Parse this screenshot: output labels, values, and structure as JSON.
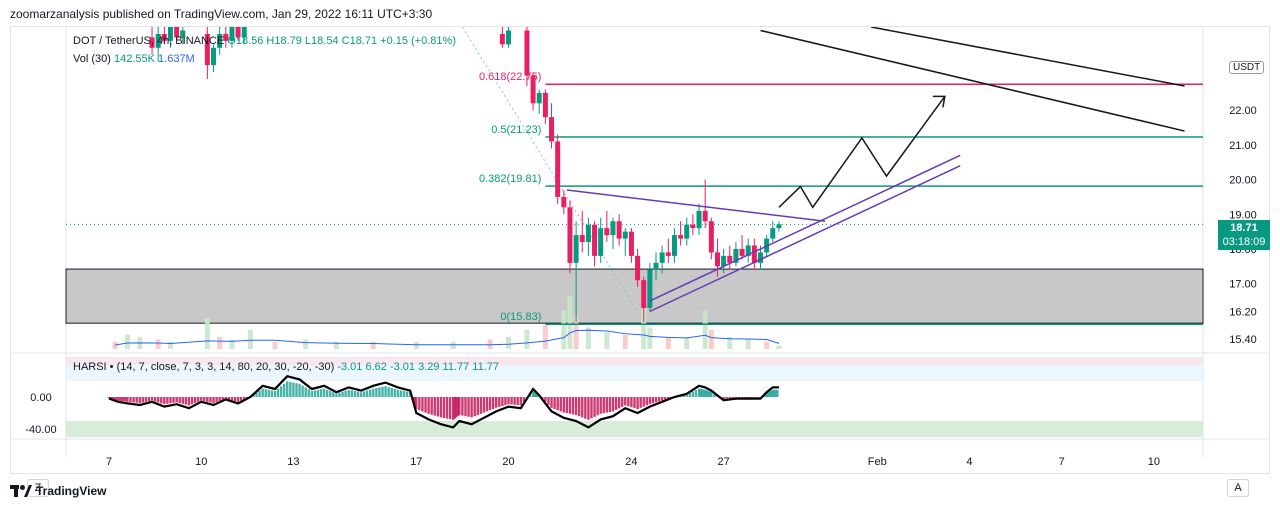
{
  "publisher": "zoomarzanalysis published on TradingView.com, Jan 29, 2022 16:11 UTC+3:30",
  "footer": {
    "brand": "TradingView",
    "logo_icon": "tradingview-logo-icon"
  },
  "corner_buttons": {
    "left": "Z",
    "right": "A"
  },
  "legend": {
    "symbol": "DOT / TetherUS, 4h, BINANCE",
    "ohlc": "O18.56  H18.79  L18.54  C18.71  +0.15 (+0.81%)",
    "vol_label": "Vol (30)",
    "vol_value": "142.55K",
    "vol_ma": "1.637M",
    "harsi_label": "HARSI • (14, 7, close, 7, 3, 3, 14, 80, 20, 30, -20, -30)",
    "harsi_values": "-3.01  6.62  -3.01  3.29  11.77  11.77"
  },
  "price_axis": {
    "unit": "USDT",
    "current_price": "18.71",
    "countdown": "03:18:09"
  },
  "chart_data": {
    "type": "candlestick",
    "x_tick_labels": [
      {
        "label": "7",
        "day": 7
      },
      {
        "label": "10",
        "day": 10
      },
      {
        "label": "13",
        "day": 13
      },
      {
        "label": "17",
        "day": 17
      },
      {
        "label": "20",
        "day": 20
      },
      {
        "label": "24",
        "day": 24
      },
      {
        "label": "27",
        "day": 27
      },
      {
        "label": "Feb",
        "day": 32
      },
      {
        "label": "4",
        "day": 35
      },
      {
        "label": "7",
        "day": 38
      },
      {
        "label": "10",
        "day": 41
      }
    ],
    "y_tick_labels": [
      "22.00",
      "21.00",
      "20.00",
      "19.00",
      "18.00",
      "17.00",
      "16.20",
      "15.40"
    ],
    "ylim": [
      15.0,
      24.4
    ],
    "fib_levels": [
      {
        "label": "0.618(22.75)",
        "price": 22.75,
        "color": "#e91e63"
      },
      {
        "label": "0.5(21.23)",
        "price": 21.23,
        "color": "#089981"
      },
      {
        "label": "0.382(19.81)",
        "price": 19.81,
        "color": "#089981"
      },
      {
        "label": "0(15.83)",
        "price": 15.83,
        "color": "#089981"
      }
    ],
    "support_zone": {
      "low": 15.86,
      "high": 17.42,
      "color": "#c8c8c8"
    },
    "current_price": 18.71,
    "candles": [
      {
        "d": 8.4,
        "o": 24.1,
        "h": 24.6,
        "l": 23.6,
        "c": 23.8
      },
      {
        "d": 8.6,
        "o": 23.8,
        "h": 24.4,
        "l": 23.4,
        "c": 24.2
      },
      {
        "d": 8.8,
        "o": 24.2,
        "h": 24.6,
        "l": 23.9,
        "c": 24.0
      },
      {
        "d": 9.0,
        "o": 24.0,
        "h": 24.6,
        "l": 23.8,
        "c": 24.4
      },
      {
        "d": 9.2,
        "o": 24.4,
        "h": 24.6,
        "l": 24.0,
        "c": 24.1
      },
      {
        "d": 9.4,
        "o": 24.1,
        "h": 24.6,
        "l": 23.9,
        "c": 24.3
      },
      {
        "d": 10.2,
        "o": 24.2,
        "h": 24.5,
        "l": 22.9,
        "c": 23.3
      },
      {
        "d": 10.4,
        "o": 23.3,
        "h": 23.9,
        "l": 23.1,
        "c": 23.8
      },
      {
        "d": 10.6,
        "o": 23.8,
        "h": 24.4,
        "l": 23.6,
        "c": 24.2
      },
      {
        "d": 10.8,
        "o": 24.2,
        "h": 24.6,
        "l": 23.8,
        "c": 24.0
      },
      {
        "d": 11.0,
        "o": 24.0,
        "h": 24.6,
        "l": 23.8,
        "c": 24.4
      },
      {
        "d": 11.2,
        "o": 24.4,
        "h": 24.6,
        "l": 24.0,
        "c": 24.1
      },
      {
        "d": 11.4,
        "o": 24.1,
        "h": 24.6,
        "l": 23.9,
        "c": 24.5
      },
      {
        "d": 19.8,
        "o": 24.2,
        "h": 24.6,
        "l": 23.8,
        "c": 23.9
      },
      {
        "d": 20.0,
        "o": 23.9,
        "h": 24.5,
        "l": 23.8,
        "c": 24.3
      },
      {
        "d": 20.6,
        "o": 24.3,
        "h": 24.5,
        "l": 22.7,
        "c": 23.0
      },
      {
        "d": 20.8,
        "o": 23.0,
        "h": 23.1,
        "l": 22.0,
        "c": 22.2
      },
      {
        "d": 21.0,
        "o": 22.2,
        "h": 22.6,
        "l": 21.9,
        "c": 22.5
      },
      {
        "d": 21.2,
        "o": 22.5,
        "h": 22.6,
        "l": 21.6,
        "c": 21.8
      },
      {
        "d": 21.4,
        "o": 21.8,
        "h": 22.2,
        "l": 20.9,
        "c": 21.1
      },
      {
        "d": 21.6,
        "o": 21.1,
        "h": 21.3,
        "l": 19.3,
        "c": 19.5
      },
      {
        "d": 21.8,
        "o": 19.5,
        "h": 19.7,
        "l": 19.0,
        "c": 19.2
      },
      {
        "d": 22.0,
        "o": 19.2,
        "h": 19.4,
        "l": 17.3,
        "c": 17.6
      },
      {
        "d": 22.2,
        "o": 17.6,
        "h": 18.8,
        "l": 15.9,
        "c": 18.4
      },
      {
        "d": 22.4,
        "o": 18.4,
        "h": 19.1,
        "l": 17.9,
        "c": 18.2
      },
      {
        "d": 22.6,
        "o": 18.2,
        "h": 18.9,
        "l": 17.8,
        "c": 18.7
      },
      {
        "d": 22.8,
        "o": 18.7,
        "h": 18.8,
        "l": 17.5,
        "c": 17.8
      },
      {
        "d": 23.0,
        "o": 17.8,
        "h": 18.9,
        "l": 17.6,
        "c": 18.6
      },
      {
        "d": 23.2,
        "o": 18.6,
        "h": 19.1,
        "l": 18.2,
        "c": 18.4
      },
      {
        "d": 23.4,
        "o": 18.4,
        "h": 18.9,
        "l": 18.0,
        "c": 18.8
      },
      {
        "d": 23.6,
        "o": 18.8,
        "h": 19.0,
        "l": 18.1,
        "c": 18.3
      },
      {
        "d": 23.8,
        "o": 18.3,
        "h": 18.6,
        "l": 17.8,
        "c": 18.5
      },
      {
        "d": 24.0,
        "o": 18.5,
        "h": 18.6,
        "l": 17.6,
        "c": 17.8
      },
      {
        "d": 24.2,
        "o": 17.8,
        "h": 18.0,
        "l": 16.9,
        "c": 17.1
      },
      {
        "d": 24.4,
        "o": 17.1,
        "h": 17.2,
        "l": 15.9,
        "c": 16.3
      },
      {
        "d": 24.6,
        "o": 16.3,
        "h": 17.6,
        "l": 16.2,
        "c": 17.4
      },
      {
        "d": 24.8,
        "o": 17.4,
        "h": 17.9,
        "l": 17.1,
        "c": 17.6
      },
      {
        "d": 25.0,
        "o": 17.6,
        "h": 18.1,
        "l": 17.3,
        "c": 17.9
      },
      {
        "d": 25.2,
        "o": 17.9,
        "h": 18.3,
        "l": 17.6,
        "c": 17.8
      },
      {
        "d": 25.4,
        "o": 17.8,
        "h": 18.6,
        "l": 17.6,
        "c": 18.4
      },
      {
        "d": 25.6,
        "o": 18.4,
        "h": 18.8,
        "l": 18.1,
        "c": 18.3
      },
      {
        "d": 25.8,
        "o": 18.3,
        "h": 18.9,
        "l": 18.1,
        "c": 18.7
      },
      {
        "d": 26.0,
        "o": 18.7,
        "h": 19.0,
        "l": 18.4,
        "c": 18.6
      },
      {
        "d": 26.2,
        "o": 18.6,
        "h": 19.3,
        "l": 18.4,
        "c": 19.1
      },
      {
        "d": 26.4,
        "o": 19.1,
        "h": 20.0,
        "l": 18.6,
        "c": 18.8
      },
      {
        "d": 26.6,
        "o": 18.8,
        "h": 18.9,
        "l": 17.7,
        "c": 17.9
      },
      {
        "d": 26.8,
        "o": 17.9,
        "h": 18.3,
        "l": 17.2,
        "c": 17.5
      },
      {
        "d": 27.0,
        "o": 17.5,
        "h": 18.0,
        "l": 17.3,
        "c": 17.8
      },
      {
        "d": 27.2,
        "o": 17.8,
        "h": 18.1,
        "l": 17.4,
        "c": 17.6
      },
      {
        "d": 27.4,
        "o": 17.6,
        "h": 18.2,
        "l": 17.5,
        "c": 18.0
      },
      {
        "d": 27.6,
        "o": 18.0,
        "h": 18.4,
        "l": 17.7,
        "c": 17.8
      },
      {
        "d": 27.8,
        "o": 17.8,
        "h": 18.3,
        "l": 17.6,
        "c": 18.1
      },
      {
        "d": 28.0,
        "o": 18.1,
        "h": 18.3,
        "l": 17.4,
        "c": 17.6
      },
      {
        "d": 28.2,
        "o": 17.6,
        "h": 18.1,
        "l": 17.4,
        "c": 17.9
      },
      {
        "d": 28.4,
        "o": 17.9,
        "h": 18.4,
        "l": 17.8,
        "c": 18.3
      },
      {
        "d": 28.6,
        "o": 18.3,
        "h": 18.8,
        "l": 18.2,
        "c": 18.6
      },
      {
        "d": 28.8,
        "o": 18.6,
        "h": 18.8,
        "l": 18.5,
        "c": 18.71
      }
    ],
    "volume_bars": [
      {
        "d": 7.2,
        "v": 0.3
      },
      {
        "d": 7.6,
        "v": 0.6
      },
      {
        "d": 8.0,
        "v": 0.5
      },
      {
        "d": 8.6,
        "v": 0.4
      },
      {
        "d": 9.0,
        "v": 0.3
      },
      {
        "d": 10.2,
        "v": 1.3
      },
      {
        "d": 10.6,
        "v": 0.5
      },
      {
        "d": 11.0,
        "v": 0.4
      },
      {
        "d": 11.6,
        "v": 0.8
      },
      {
        "d": 12.4,
        "v": 0.3
      },
      {
        "d": 13.4,
        "v": 0.4
      },
      {
        "d": 14.4,
        "v": 0.3
      },
      {
        "d": 15.6,
        "v": 0.3
      },
      {
        "d": 17.0,
        "v": 0.3
      },
      {
        "d": 18.2,
        "v": 0.3
      },
      {
        "d": 19.4,
        "v": 0.4
      },
      {
        "d": 20.0,
        "v": 0.5
      },
      {
        "d": 20.6,
        "v": 0.8
      },
      {
        "d": 21.2,
        "v": 1.0
      },
      {
        "d": 21.8,
        "v": 1.6
      },
      {
        "d": 22.0,
        "v": 2.2
      },
      {
        "d": 22.2,
        "v": 1.4
      },
      {
        "d": 22.6,
        "v": 0.9
      },
      {
        "d": 23.2,
        "v": 0.7
      },
      {
        "d": 23.8,
        "v": 0.6
      },
      {
        "d": 24.4,
        "v": 1.7
      },
      {
        "d": 24.6,
        "v": 0.9
      },
      {
        "d": 25.2,
        "v": 0.5
      },
      {
        "d": 25.8,
        "v": 0.5
      },
      {
        "d": 26.4,
        "v": 1.6
      },
      {
        "d": 26.6,
        "v": 0.8
      },
      {
        "d": 27.2,
        "v": 0.5
      },
      {
        "d": 27.8,
        "v": 0.4
      },
      {
        "d": 28.4,
        "v": 0.3
      },
      {
        "d": 28.8,
        "v": 0.14
      }
    ],
    "drawings": {
      "descending_line": [
        {
          "d": 21.9,
          "p": 19.7
        },
        {
          "d": 30.3,
          "p": 18.8
        }
      ],
      "ascending_channel": [
        [
          {
            "d": 24.6,
            "p": 16.5
          },
          {
            "d": 34.7,
            "p": 20.7
          }
        ],
        [
          {
            "d": 24.6,
            "p": 16.2
          },
          {
            "d": 34.7,
            "p": 20.4
          }
        ]
      ],
      "projection_path": [
        {
          "d": 28.8,
          "p": 19.2
        },
        {
          "d": 29.5,
          "p": 19.8
        },
        {
          "d": 29.9,
          "p": 19.2
        },
        {
          "d": 31.5,
          "p": 21.2
        },
        {
          "d": 32.3,
          "p": 20.1
        },
        {
          "d": 34.2,
          "p": 22.4
        }
      ],
      "long_lines": [
        [
          {
            "d": 28.2,
            "p": 24.3
          },
          {
            "d": 42.0,
            "p": 21.4
          }
        ],
        [
          {
            "d": 31.8,
            "p": 24.4
          },
          {
            "d": 42.0,
            "p": 22.7
          }
        ]
      ]
    },
    "harsi": {
      "y_tick_labels": [
        {
          "label": "0.00",
          "value": 0
        },
        {
          "label": "-40.00",
          "value": -40
        }
      ],
      "ylim": [
        -50,
        50
      ],
      "bands": {
        "upper": [
          20,
          50
        ],
        "lower": [
          -50,
          -30
        ],
        "ob_line": 30,
        "os_line": -30
      },
      "line": [
        [
          7.0,
          -2
        ],
        [
          7.3,
          -6
        ],
        [
          7.6,
          -8
        ],
        [
          8.0,
          -10
        ],
        [
          8.4,
          -6
        ],
        [
          8.8,
          -12
        ],
        [
          9.2,
          -9
        ],
        [
          9.6,
          -14
        ],
        [
          10.0,
          -6
        ],
        [
          10.4,
          -10
        ],
        [
          10.8,
          -3
        ],
        [
          11.2,
          -8
        ],
        [
          11.6,
          0
        ],
        [
          12.0,
          14
        ],
        [
          12.4,
          10
        ],
        [
          12.8,
          26
        ],
        [
          13.2,
          22
        ],
        [
          13.6,
          10
        ],
        [
          14.0,
          14
        ],
        [
          14.4,
          6
        ],
        [
          14.8,
          12
        ],
        [
          15.2,
          8
        ],
        [
          15.6,
          14
        ],
        [
          16.0,
          18
        ],
        [
          16.4,
          12
        ],
        [
          16.8,
          8
        ],
        [
          17.0,
          -20
        ],
        [
          17.4,
          -28
        ],
        [
          17.8,
          -34
        ],
        [
          18.2,
          -38
        ],
        [
          18.4,
          -30
        ],
        [
          18.8,
          -34
        ],
        [
          19.2,
          -26
        ],
        [
          19.6,
          -18
        ],
        [
          20.0,
          -12
        ],
        [
          20.4,
          -14
        ],
        [
          20.8,
          10
        ],
        [
          21.0,
          2
        ],
        [
          21.4,
          -18
        ],
        [
          21.8,
          -26
        ],
        [
          22.2,
          -30
        ],
        [
          22.6,
          -38
        ],
        [
          23.0,
          -28
        ],
        [
          23.4,
          -24
        ],
        [
          23.8,
          -14
        ],
        [
          24.2,
          -20
        ],
        [
          24.6,
          -12
        ],
        [
          25.0,
          -6
        ],
        [
          25.4,
          0
        ],
        [
          25.8,
          4
        ],
        [
          26.2,
          14
        ],
        [
          26.4,
          12
        ],
        [
          26.6,
          8
        ],
        [
          27.0,
          -4
        ],
        [
          27.4,
          -2
        ],
        [
          27.8,
          -2
        ],
        [
          28.2,
          -2
        ],
        [
          28.4,
          6
        ],
        [
          28.6,
          12
        ],
        [
          28.8,
          12
        ]
      ]
    }
  }
}
